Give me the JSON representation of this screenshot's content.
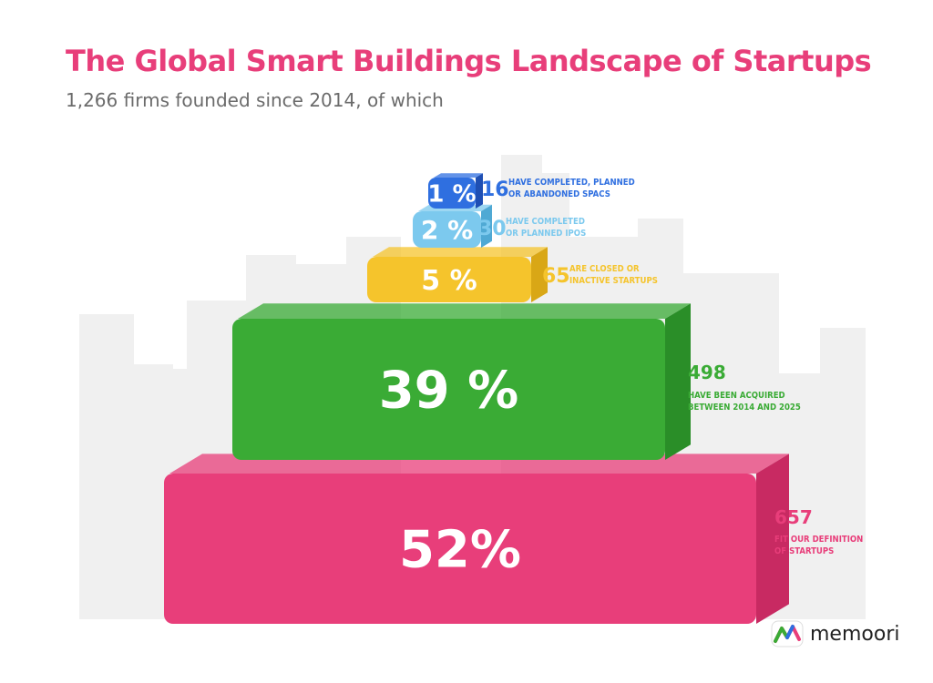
{
  "title": "The Global Smart Buildings Landscape of Startups",
  "subtitle": "1,266 firms founded since 2014, of which",
  "colors": {
    "title": "#e83e7a",
    "text_gray": "#6b6b6b"
  },
  "logo": {
    "text": "memoori",
    "icon": "memoori-logo-icon"
  },
  "chart_data": {
    "type": "pyramid",
    "total": 1266,
    "tiers": [
      {
        "percent_label": "1 %",
        "percent": 1,
        "count": "16",
        "desc": [
          "HAVE COMPLETED, PLANNED",
          "OR ABANDONED SPACS"
        ],
        "color": "#2f6fe0",
        "side": "#1f4fb3"
      },
      {
        "percent_label": "2 %",
        "percent": 2,
        "count": "30",
        "desc": [
          "HAVE COMPLETED",
          "OR PLANNED IPOS"
        ],
        "color": "#7cc9ee",
        "side": "#4fa9d4"
      },
      {
        "percent_label": "5 %",
        "percent": 5,
        "count": "65",
        "desc": [
          "ARE CLOSED OR",
          "INACTIVE STARTUPS"
        ],
        "color": "#f5c42c",
        "side": "#d9a716"
      },
      {
        "percent_label": "39 %",
        "percent": 39,
        "count": "498",
        "desc": [
          "HAVE BEEN ACQUIRED",
          "BETWEEN 2014 AND 2025"
        ],
        "color": "#3aab35",
        "side": "#2a8e28"
      },
      {
        "percent_label": "52%",
        "percent": 52,
        "count": "657",
        "desc": [
          "FIT OUR DEFINITION",
          "OF STARTUPS"
        ],
        "color": "#e83e7a",
        "side": "#c82a62"
      }
    ]
  }
}
